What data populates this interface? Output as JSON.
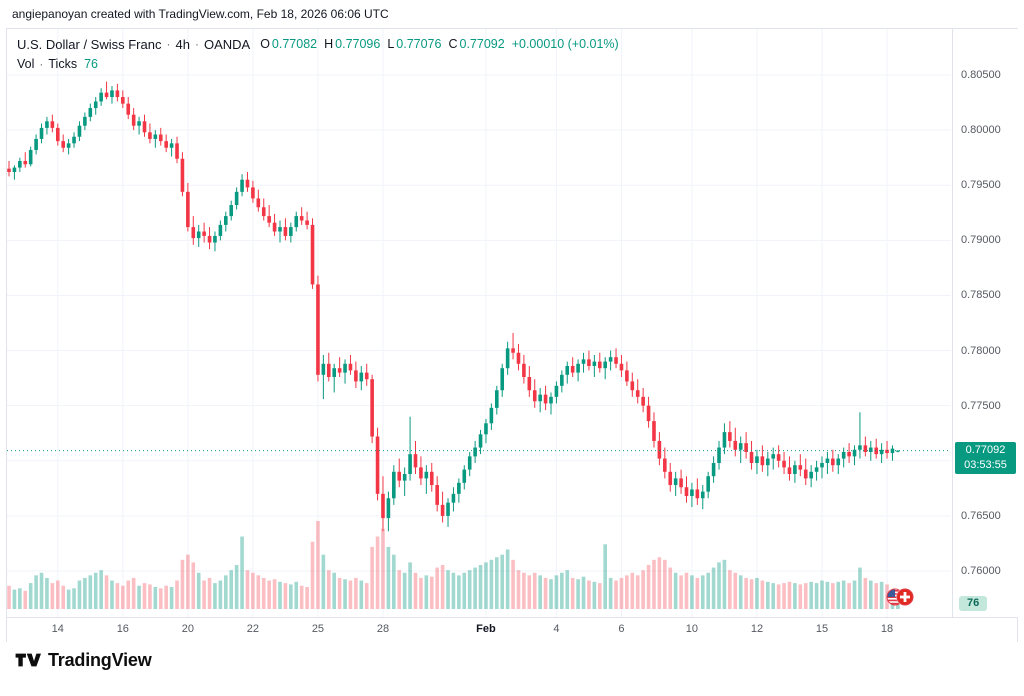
{
  "attribution": "angiepanoyan created with TradingView.com, Feb 18, 2026 06:06 UTC",
  "legend": {
    "symbol": "U.S. Dollar / Swiss Franc",
    "sep": "·",
    "timeframe": "4h",
    "exchange": "OANDA",
    "o_label": "O",
    "o_value": "0.77082",
    "h_label": "H",
    "h_value": "0.77096",
    "l_label": "L",
    "l_value": "0.77076",
    "c_label": "C",
    "c_value": "0.77092",
    "change": "+0.00010 (+0.01%)",
    "vol_label": "Vol",
    "vol_source": "Ticks",
    "vol_value": "76"
  },
  "price_axis": {
    "labels": [
      {
        "text": "0.80500",
        "value": 0.805
      },
      {
        "text": "0.80000",
        "value": 0.8
      },
      {
        "text": "0.79500",
        "value": 0.795
      },
      {
        "text": "0.79000",
        "value": 0.79
      },
      {
        "text": "0.78500",
        "value": 0.785
      },
      {
        "text": "0.78000",
        "value": 0.78
      },
      {
        "text": "0.77500",
        "value": 0.775
      },
      {
        "text": "0.76500",
        "value": 0.765
      },
      {
        "text": "0.76000",
        "value": 0.76
      }
    ],
    "current": {
      "text": "0.77092",
      "countdown": "03:53:55",
      "value": 0.77092
    }
  },
  "volume_badge": "76",
  "footer": {
    "brand": "TradingView"
  },
  "colors": {
    "up": "#089981",
    "down": "#f23645",
    "volume_up": "rgba(8,153,129,0.38)",
    "volume_down": "rgba(242,54,69,0.32)",
    "grid": "#f0f3fa",
    "axis_text": "#555961",
    "badge_bg": "#089981",
    "volume_badge_bg": "#c3e7db"
  },
  "chart_data": {
    "type": "candlestick",
    "title": "U.S. Dollar / Swiss Franc",
    "symbol": "USD/CHF",
    "timeframe": "4h",
    "exchange": "OANDA",
    "volume_label": "Vol · Ticks",
    "ohlc_current": {
      "open": 0.77082,
      "high": 0.77096,
      "low": 0.77076,
      "close": 0.77092,
      "change": "+0.00010 (+0.01%)"
    },
    "volume_current": 76,
    "last_price": 0.77092,
    "ylim": [
      0.7558,
      0.8092
    ],
    "y_tick_step": 0.005,
    "grid": true,
    "x_ticks": [
      {
        "label": "14",
        "index": 9
      },
      {
        "label": "16",
        "index": 21
      },
      {
        "label": "20",
        "index": 33
      },
      {
        "label": "22",
        "index": 45
      },
      {
        "label": "25",
        "index": 57
      },
      {
        "label": "28",
        "index": 69
      },
      {
        "label": "Feb",
        "index": 88,
        "major": true
      },
      {
        "label": "4",
        "index": 101
      },
      {
        "label": "6",
        "index": 113
      },
      {
        "label": "10",
        "index": 126
      },
      {
        "label": "12",
        "index": 138
      },
      {
        "label": "15",
        "index": 150
      },
      {
        "label": "18",
        "index": 162
      }
    ],
    "candles": [
      [
        0.7965,
        0.7972,
        0.7958,
        0.7962,
        180
      ],
      [
        0.7962,
        0.7968,
        0.7955,
        0.7966,
        150
      ],
      [
        0.7966,
        0.7975,
        0.7962,
        0.7972,
        160
      ],
      [
        0.7972,
        0.798,
        0.7966,
        0.7969,
        140
      ],
      [
        0.7969,
        0.7985,
        0.7967,
        0.7982,
        200
      ],
      [
        0.7982,
        0.7996,
        0.7978,
        0.7992,
        260
      ],
      [
        0.7992,
        0.8006,
        0.7988,
        0.8002,
        280
      ],
      [
        0.8002,
        0.8012,
        0.7996,
        0.8008,
        240
      ],
      [
        0.8008,
        0.8014,
        0.7998,
        0.8002,
        200
      ],
      [
        0.8002,
        0.8006,
        0.7986,
        0.799,
        220
      ],
      [
        0.799,
        0.7996,
        0.798,
        0.7984,
        180
      ],
      [
        0.7984,
        0.7992,
        0.7978,
        0.7988,
        150
      ],
      [
        0.7988,
        0.7998,
        0.7984,
        0.7994,
        160
      ],
      [
        0.7994,
        0.8008,
        0.799,
        0.8004,
        220
      ],
      [
        0.8004,
        0.8016,
        0.8,
        0.8012,
        240
      ],
      [
        0.8012,
        0.8024,
        0.8008,
        0.802,
        260
      ],
      [
        0.802,
        0.803,
        0.8014,
        0.8026,
        280
      ],
      [
        0.8026,
        0.8038,
        0.8022,
        0.8034,
        300
      ],
      [
        0.8034,
        0.8044,
        0.8028,
        0.803,
        260
      ],
      [
        0.803,
        0.804,
        0.8024,
        0.8036,
        220
      ],
      [
        0.8036,
        0.8042,
        0.8026,
        0.803,
        200
      ],
      [
        0.803,
        0.8036,
        0.802,
        0.8024,
        180
      ],
      [
        0.8024,
        0.803,
        0.801,
        0.8014,
        220
      ],
      [
        0.8014,
        0.802,
        0.8,
        0.8004,
        240
      ],
      [
        0.8004,
        0.8012,
        0.7996,
        0.8008,
        180
      ],
      [
        0.8008,
        0.8014,
        0.7994,
        0.7998,
        200
      ],
      [
        0.7998,
        0.8006,
        0.7988,
        0.7992,
        190
      ],
      [
        0.7992,
        0.8,
        0.7984,
        0.7996,
        170
      ],
      [
        0.7996,
        0.8002,
        0.7986,
        0.799,
        160
      ],
      [
        0.799,
        0.7996,
        0.798,
        0.7984,
        180
      ],
      [
        0.7984,
        0.7992,
        0.7976,
        0.7988,
        170
      ],
      [
        0.7988,
        0.7994,
        0.797,
        0.7974,
        220
      ],
      [
        0.7974,
        0.798,
        0.794,
        0.7944,
        380
      ],
      [
        0.7944,
        0.7952,
        0.7908,
        0.7912,
        420
      ],
      [
        0.7912,
        0.7922,
        0.7896,
        0.7902,
        360
      ],
      [
        0.7902,
        0.7914,
        0.7894,
        0.7908,
        280
      ],
      [
        0.7908,
        0.7916,
        0.7898,
        0.7904,
        220
      ],
      [
        0.7904,
        0.7912,
        0.7892,
        0.7898,
        240
      ],
      [
        0.7898,
        0.7908,
        0.789,
        0.7904,
        200
      ],
      [
        0.7904,
        0.7918,
        0.79,
        0.7914,
        220
      ],
      [
        0.7914,
        0.7926,
        0.7908,
        0.7922,
        260
      ],
      [
        0.7922,
        0.7936,
        0.7918,
        0.7932,
        300
      ],
      [
        0.7932,
        0.7948,
        0.7928,
        0.7944,
        340
      ],
      [
        0.7944,
        0.796,
        0.794,
        0.7955,
        560
      ],
      [
        0.7955,
        0.7962,
        0.7944,
        0.7948,
        300
      ],
      [
        0.7948,
        0.7954,
        0.7934,
        0.7938,
        280
      ],
      [
        0.7938,
        0.7946,
        0.7926,
        0.793,
        260
      ],
      [
        0.793,
        0.7938,
        0.7918,
        0.7922,
        240
      ],
      [
        0.7922,
        0.7932,
        0.7912,
        0.7916,
        220
      ],
      [
        0.7916,
        0.7924,
        0.7904,
        0.7908,
        230
      ],
      [
        0.7908,
        0.7918,
        0.7898,
        0.7912,
        210
      ],
      [
        0.7912,
        0.792,
        0.79,
        0.7904,
        200
      ],
      [
        0.7904,
        0.7916,
        0.7898,
        0.7912,
        190
      ],
      [
        0.7912,
        0.7926,
        0.7908,
        0.7922,
        210
      ],
      [
        0.7922,
        0.793,
        0.7914,
        0.7918,
        180
      ],
      [
        0.7918,
        0.7926,
        0.791,
        0.7914,
        170
      ],
      [
        0.7914,
        0.792,
        0.7856,
        0.786,
        520
      ],
      [
        0.786,
        0.7868,
        0.7772,
        0.7778,
        680
      ],
      [
        0.7778,
        0.7796,
        0.7756,
        0.7788,
        420
      ],
      [
        0.7788,
        0.7798,
        0.7772,
        0.7776,
        300
      ],
      [
        0.7776,
        0.7788,
        0.7762,
        0.7784,
        280
      ],
      [
        0.7784,
        0.7794,
        0.7776,
        0.778,
        240
      ],
      [
        0.778,
        0.7792,
        0.777,
        0.7788,
        230
      ],
      [
        0.7788,
        0.7796,
        0.7778,
        0.7782,
        220
      ],
      [
        0.7782,
        0.779,
        0.7766,
        0.7772,
        240
      ],
      [
        0.7772,
        0.7786,
        0.7764,
        0.778,
        220
      ],
      [
        0.778,
        0.7788,
        0.7768,
        0.7774,
        200
      ],
      [
        0.7774,
        0.7778,
        0.7716,
        0.7722,
        480
      ],
      [
        0.7722,
        0.773,
        0.7664,
        0.767,
        560
      ],
      [
        0.767,
        0.7686,
        0.7636,
        0.7648,
        620
      ],
      [
        0.7648,
        0.7672,
        0.7636,
        0.7666,
        480
      ],
      [
        0.7666,
        0.7696,
        0.766,
        0.769,
        420
      ],
      [
        0.769,
        0.7702,
        0.7676,
        0.7682,
        300
      ],
      [
        0.7682,
        0.7694,
        0.7668,
        0.7688,
        280
      ],
      [
        0.7688,
        0.774,
        0.7682,
        0.7706,
        360
      ],
      [
        0.7706,
        0.7718,
        0.7688,
        0.7694,
        280
      ],
      [
        0.7694,
        0.7704,
        0.7678,
        0.7684,
        240
      ],
      [
        0.7684,
        0.7696,
        0.767,
        0.769,
        260
      ],
      [
        0.769,
        0.7698,
        0.7672,
        0.7678,
        250
      ],
      [
        0.7678,
        0.7686,
        0.7654,
        0.766,
        320
      ],
      [
        0.766,
        0.7672,
        0.7644,
        0.765,
        340
      ],
      [
        0.765,
        0.7666,
        0.764,
        0.7662,
        300
      ],
      [
        0.7662,
        0.7676,
        0.7654,
        0.767,
        280
      ],
      [
        0.767,
        0.7684,
        0.7662,
        0.768,
        260
      ],
      [
        0.768,
        0.7696,
        0.7674,
        0.7692,
        280
      ],
      [
        0.7692,
        0.7708,
        0.7686,
        0.7704,
        300
      ],
      [
        0.7704,
        0.7718,
        0.7698,
        0.7712,
        320
      ],
      [
        0.7712,
        0.7728,
        0.7706,
        0.7724,
        340
      ],
      [
        0.7724,
        0.7738,
        0.7716,
        0.7734,
        360
      ],
      [
        0.7734,
        0.7752,
        0.7728,
        0.7748,
        380
      ],
      [
        0.7748,
        0.7768,
        0.7742,
        0.7764,
        400
      ],
      [
        0.7764,
        0.7788,
        0.7758,
        0.7784,
        420
      ],
      [
        0.7784,
        0.7808,
        0.7778,
        0.7802,
        460
      ],
      [
        0.7802,
        0.7816,
        0.7792,
        0.7798,
        380
      ],
      [
        0.7798,
        0.7806,
        0.7782,
        0.7788,
        300
      ],
      [
        0.7788,
        0.7796,
        0.777,
        0.7776,
        280
      ],
      [
        0.7776,
        0.7786,
        0.7758,
        0.7764,
        260
      ],
      [
        0.7764,
        0.7774,
        0.7748,
        0.7754,
        280
      ],
      [
        0.7754,
        0.7766,
        0.7744,
        0.776,
        260
      ],
      [
        0.776,
        0.7768,
        0.7746,
        0.7752,
        240
      ],
      [
        0.7752,
        0.7762,
        0.7742,
        0.7758,
        230
      ],
      [
        0.7758,
        0.7772,
        0.7752,
        0.7768,
        260
      ],
      [
        0.7768,
        0.7782,
        0.7762,
        0.7778,
        280
      ],
      [
        0.7778,
        0.779,
        0.777,
        0.7786,
        300
      ],
      [
        0.7786,
        0.7794,
        0.7776,
        0.778,
        240
      ],
      [
        0.778,
        0.7792,
        0.7772,
        0.7788,
        230
      ],
      [
        0.7788,
        0.7798,
        0.778,
        0.7792,
        250
      ],
      [
        0.7792,
        0.78,
        0.7782,
        0.7786,
        220
      ],
      [
        0.7786,
        0.7796,
        0.7776,
        0.779,
        210
      ],
      [
        0.779,
        0.7798,
        0.778,
        0.7784,
        200
      ],
      [
        0.7784,
        0.7794,
        0.7774,
        0.779,
        500
      ],
      [
        0.779,
        0.78,
        0.7782,
        0.7794,
        240
      ],
      [
        0.7794,
        0.7802,
        0.7784,
        0.7788,
        220
      ],
      [
        0.7788,
        0.7796,
        0.7776,
        0.7782,
        240
      ],
      [
        0.7782,
        0.779,
        0.7768,
        0.7772,
        260
      ],
      [
        0.7772,
        0.778,
        0.7758,
        0.7764,
        280
      ],
      [
        0.7764,
        0.7774,
        0.7752,
        0.7758,
        260
      ],
      [
        0.7758,
        0.7766,
        0.7744,
        0.775,
        300
      ],
      [
        0.775,
        0.7758,
        0.773,
        0.7736,
        340
      ],
      [
        0.7736,
        0.7744,
        0.7712,
        0.7718,
        380
      ],
      [
        0.7718,
        0.7726,
        0.7696,
        0.7702,
        400
      ],
      [
        0.7702,
        0.7712,
        0.7684,
        0.769,
        380
      ],
      [
        0.769,
        0.7698,
        0.7672,
        0.7678,
        320
      ],
      [
        0.7678,
        0.769,
        0.7668,
        0.7684,
        280
      ],
      [
        0.7684,
        0.7692,
        0.767,
        0.7676,
        260
      ],
      [
        0.7676,
        0.7686,
        0.7662,
        0.7668,
        280
      ],
      [
        0.7668,
        0.768,
        0.7658,
        0.7674,
        260
      ],
      [
        0.7674,
        0.7684,
        0.766,
        0.7666,
        240
      ],
      [
        0.7666,
        0.7678,
        0.7656,
        0.7672,
        260
      ],
      [
        0.7672,
        0.769,
        0.7666,
        0.7686,
        280
      ],
      [
        0.7686,
        0.7704,
        0.768,
        0.7698,
        320
      ],
      [
        0.7698,
        0.7718,
        0.7692,
        0.7712,
        360
      ],
      [
        0.7712,
        0.7734,
        0.7706,
        0.7726,
        380
      ],
      [
        0.7726,
        0.7736,
        0.7712,
        0.7718,
        300
      ],
      [
        0.7718,
        0.773,
        0.7704,
        0.771,
        280
      ],
      [
        0.771,
        0.7722,
        0.7698,
        0.7716,
        260
      ],
      [
        0.7716,
        0.7726,
        0.7702,
        0.7708,
        240
      ],
      [
        0.7708,
        0.7718,
        0.7692,
        0.7698,
        230
      ],
      [
        0.7698,
        0.771,
        0.7688,
        0.7704,
        240
      ],
      [
        0.7704,
        0.7714,
        0.769,
        0.7696,
        220
      ],
      [
        0.7696,
        0.7708,
        0.7686,
        0.7702,
        210
      ],
      [
        0.7702,
        0.7712,
        0.7692,
        0.7706,
        200
      ],
      [
        0.7706,
        0.7714,
        0.7694,
        0.77,
        190
      ],
      [
        0.77,
        0.7708,
        0.7688,
        0.7694,
        200
      ],
      [
        0.7694,
        0.7704,
        0.7682,
        0.7688,
        210
      ],
      [
        0.7688,
        0.77,
        0.768,
        0.7696,
        200
      ],
      [
        0.7696,
        0.7706,
        0.7686,
        0.7692,
        190
      ],
      [
        0.7692,
        0.7702,
        0.7678,
        0.7684,
        200
      ],
      [
        0.7684,
        0.7696,
        0.7676,
        0.769,
        210
      ],
      [
        0.769,
        0.77,
        0.7682,
        0.7694,
        200
      ],
      [
        0.7694,
        0.7704,
        0.7684,
        0.7698,
        220
      ],
      [
        0.7698,
        0.7708,
        0.7688,
        0.7702,
        210
      ],
      [
        0.7702,
        0.771,
        0.769,
        0.7696,
        200
      ],
      [
        0.7696,
        0.7706,
        0.7688,
        0.7702,
        210
      ],
      [
        0.7702,
        0.7712,
        0.7694,
        0.7708,
        220
      ],
      [
        0.7708,
        0.7716,
        0.7698,
        0.7704,
        200
      ],
      [
        0.7704,
        0.7714,
        0.7696,
        0.771,
        220
      ],
      [
        0.771,
        0.7744,
        0.7702,
        0.7714,
        320
      ],
      [
        0.7714,
        0.7722,
        0.7704,
        0.7708,
        240
      ],
      [
        0.7708,
        0.7718,
        0.77,
        0.7712,
        220
      ],
      [
        0.7712,
        0.772,
        0.7702,
        0.7706,
        200
      ],
      [
        0.7706,
        0.7716,
        0.7698,
        0.771,
        210
      ],
      [
        0.771,
        0.7718,
        0.7702,
        0.7707,
        190
      ],
      [
        0.7707,
        0.7714,
        0.77,
        0.7711,
        150
      ],
      [
        0.77082,
        0.77096,
        0.77076,
        0.77092,
        76
      ]
    ]
  }
}
